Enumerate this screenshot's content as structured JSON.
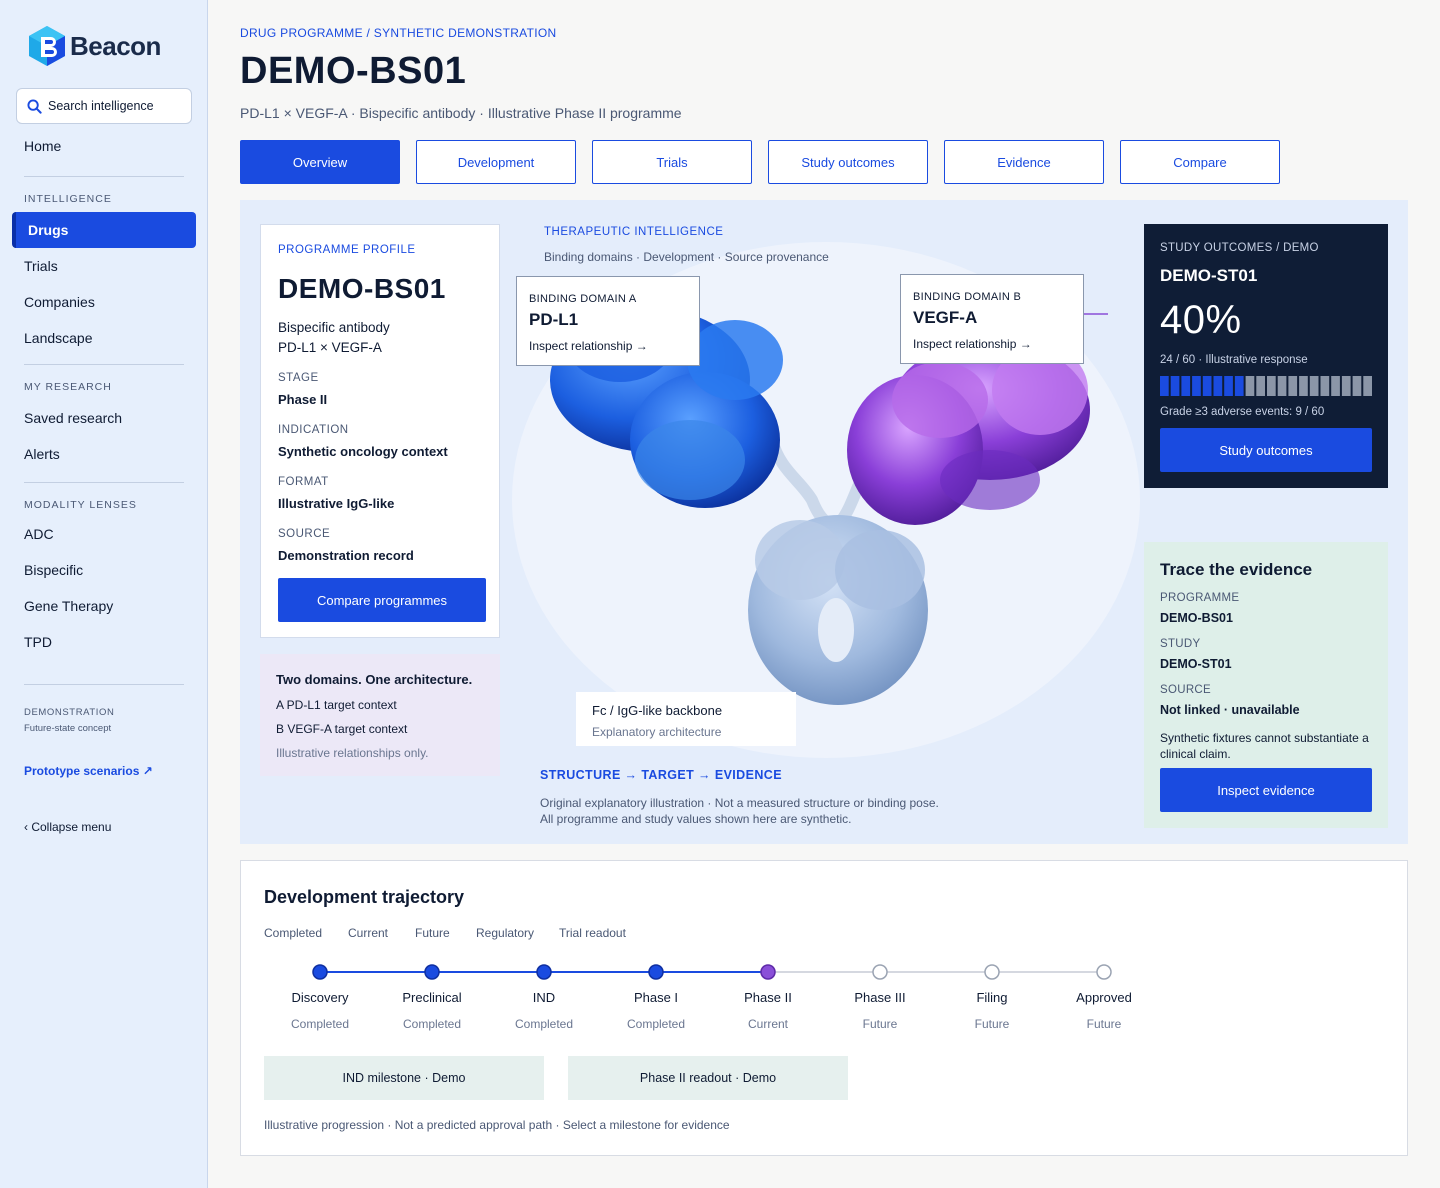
{
  "app": {
    "name": "Beacon",
    "search_placeholder": "Search intelligence"
  },
  "sidebar": {
    "home": "Home",
    "sections": {
      "intelligence": "INTELLIGENCE",
      "my_research": "MY RESEARCH",
      "modality_lenses": "MODALITY LENSES"
    },
    "intelligence_items": [
      "Drugs",
      "Trials",
      "Companies",
      "Landscape"
    ],
    "active_item": "Drugs",
    "research_items": [
      "Saved research",
      "Alerts"
    ],
    "modality_items": [
      "ADC",
      "Bispecific",
      "Gene Therapy",
      "TPD"
    ],
    "demo_label": "DEMONSTRATION",
    "demo_sub": "Future-state concept",
    "prototype_link": "Prototype scenarios ↗",
    "collapse": "‹  Collapse menu"
  },
  "header": {
    "breadcrumb": "DRUG PROGRAMME  /  SYNTHETIC DEMONSTRATION",
    "title": "DEMO-BS01",
    "subtitle": "PD-L1 × VEGF-A · Bispecific antibody · Illustrative Phase II programme",
    "tabs": [
      "Overview",
      "Development",
      "Trials",
      "Study outcomes",
      "Evidence",
      "Compare"
    ],
    "active_tab": "Overview"
  },
  "profile": {
    "eyebrow": "PROGRAMME PROFILE",
    "title": "DEMO-BS01",
    "line1": "Bispecific antibody",
    "line2": "PD-L1 × VEGF-A",
    "fields": [
      {
        "label": "STAGE",
        "value": "Phase II"
      },
      {
        "label": "INDICATION",
        "value": "Synthetic oncology context"
      },
      {
        "label": "FORMAT",
        "value": "Illustrative IgG-like"
      },
      {
        "label": "SOURCE",
        "value": "Demonstration record"
      }
    ],
    "button": "Compare programmes"
  },
  "domains": {
    "title": "Two domains. One architecture.",
    "a": "A  PD-L1 target context",
    "b": "B  VEGF-A target context",
    "note": "Illustrative relationships only."
  },
  "therapeutic": {
    "eyebrow": "THERAPEUTIC INTELLIGENCE",
    "sub": "Binding domains · Development · Source provenance",
    "domain_a": {
      "eyebrow": "BINDING DOMAIN A",
      "title": "PD-L1",
      "link": "Inspect relationship →"
    },
    "domain_b": {
      "eyebrow": "BINDING DOMAIN B",
      "title": "VEGF-A",
      "link": "Inspect relationship →"
    },
    "fc": {
      "title": "Fc / IgG-like backbone",
      "sub": "Explanatory architecture"
    },
    "chain_heading": "STRUCTURE → TARGET → EVIDENCE",
    "note1": "Original explanatory illustration · Not a measured structure or binding pose.",
    "note2": "All programme and study values shown here are synthetic.",
    "colors": {
      "domain_a": "#1c5fe0",
      "domain_b": "#8a3fd8",
      "fc": "#9fb9de",
      "hinge": "#c9d8ec"
    }
  },
  "outcome": {
    "eyebrow": "STUDY OUTCOMES / DEMO",
    "title": "DEMO-ST01",
    "value": "40%",
    "response": "24 / 60 · Illustrative response",
    "responders": 24,
    "total": 60,
    "adverse": "Grade ≥3 adverse events: 9 / 60",
    "button": "Study outcomes"
  },
  "trace": {
    "title": "Trace the evidence",
    "fields": [
      {
        "label": "PROGRAMME",
        "value": "DEMO-BS01"
      },
      {
        "label": "STUDY",
        "value": "DEMO-ST01"
      },
      {
        "label": "SOURCE",
        "value": "Not linked · unavailable"
      }
    ],
    "note": "Synthetic fixtures cannot substantiate a clinical claim.",
    "button": "Inspect evidence"
  },
  "trajectory": {
    "title": "Development trajectory",
    "legend": [
      "Completed",
      "Current",
      "Future",
      "Regulatory",
      "Trial readout"
    ],
    "steps": [
      {
        "name": "Discovery",
        "status": "Completed"
      },
      {
        "name": "Preclinical",
        "status": "Completed"
      },
      {
        "name": "IND",
        "status": "Completed"
      },
      {
        "name": "Phase I",
        "status": "Completed"
      },
      {
        "name": "Phase II",
        "status": "Current"
      },
      {
        "name": "Phase III",
        "status": "Future"
      },
      {
        "name": "Filing",
        "status": "Future"
      },
      {
        "name": "Approved",
        "status": "Future"
      }
    ],
    "milestones": [
      "IND milestone · Demo",
      "Phase II readout · Demo"
    ],
    "note": "Illustrative progression · Not a predicted approval path · Select a milestone for evidence",
    "colors": {
      "completed": "#1a4be0",
      "current": "#8a4fd8",
      "future": "#9aa3b2"
    }
  }
}
